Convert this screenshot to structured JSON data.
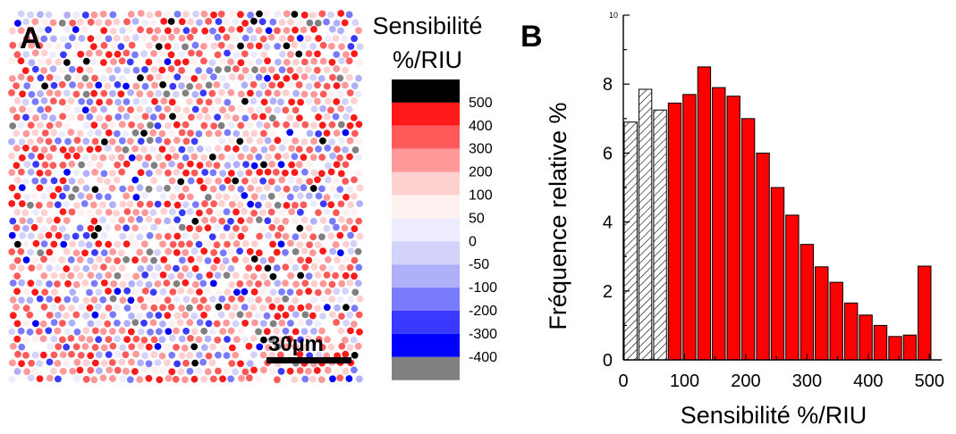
{
  "panel_a": {
    "letter": "A",
    "colorbar_title_line1": "Sensibilité",
    "colorbar_title_line2": "%/RIU",
    "colorbar": [
      {
        "label": "500",
        "color": "#000000"
      },
      {
        "label": "400",
        "color": "#ff1a1a"
      },
      {
        "label": "300",
        "color": "#ff5a5a"
      },
      {
        "label": "200",
        "color": "#ff9898"
      },
      {
        "label": "100",
        "color": "#ffd0d0"
      },
      {
        "label": "50",
        "color": "#fff0f0"
      },
      {
        "label": "0",
        "color": "#ececfc"
      },
      {
        "label": "-50",
        "color": "#d2d2fa"
      },
      {
        "label": "-100",
        "color": "#b0b0fa"
      },
      {
        "label": "-200",
        "color": "#7a7aff"
      },
      {
        "label": "-300",
        "color": "#3a3aff"
      },
      {
        "label": "-400",
        "color": "#0000ff"
      },
      {
        "label": "",
        "color": "#808080"
      }
    ],
    "scale_bar_label": "30µm"
  },
  "panel_b": {
    "letter": "B"
  },
  "chart_data": {
    "type": "bar",
    "title": "",
    "xlabel": "Sensibilité %/RIU",
    "ylabel": "Fréquence relative %",
    "xlim": [
      0,
      520
    ],
    "ylim": [
      0,
      10
    ],
    "xticks": [
      0,
      100,
      200,
      300,
      400,
      500
    ],
    "yticks": [
      0,
      2,
      4,
      6,
      8
    ],
    "ytick_top_label": "10",
    "bin_width": 24,
    "series": [
      {
        "style": "hatched",
        "bins": [
          {
            "x": 12,
            "value": 6.9
          },
          {
            "x": 36,
            "value": 7.85
          },
          {
            "x": 60,
            "value": 7.25
          }
        ]
      },
      {
        "style": "red",
        "color": "#ff0000",
        "bins": [
          {
            "x": 84,
            "value": 7.45
          },
          {
            "x": 108,
            "value": 7.7
          },
          {
            "x": 132,
            "value": 8.5
          },
          {
            "x": 156,
            "value": 7.9
          },
          {
            "x": 180,
            "value": 7.65
          },
          {
            "x": 204,
            "value": 7.0
          },
          {
            "x": 228,
            "value": 6.0
          },
          {
            "x": 252,
            "value": 5.0
          },
          {
            "x": 276,
            "value": 4.2
          },
          {
            "x": 300,
            "value": 3.35
          },
          {
            "x": 324,
            "value": 2.7
          },
          {
            "x": 348,
            "value": 2.25
          },
          {
            "x": 372,
            "value": 1.65
          },
          {
            "x": 396,
            "value": 1.3
          },
          {
            "x": 420,
            "value": 1.0
          },
          {
            "x": 444,
            "value": 0.68
          },
          {
            "x": 468,
            "value": 0.72
          },
          {
            "x": 492,
            "value": 2.72
          }
        ]
      }
    ]
  }
}
